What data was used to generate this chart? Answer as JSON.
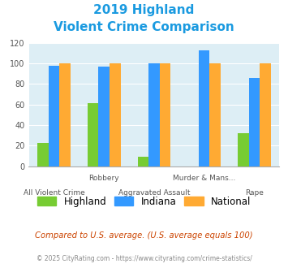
{
  "title_line1": "2019 Highland",
  "title_line2": "Violent Crime Comparison",
  "title_color": "#1a9ae0",
  "groups": [
    {
      "highland": 23,
      "indiana": 98,
      "national": 100
    },
    {
      "highland": 61,
      "indiana": 97,
      "national": 100
    },
    {
      "highland": 9,
      "indiana": 100,
      "national": 100
    },
    {
      "highland": 0,
      "indiana": 113,
      "national": 100
    },
    {
      "highland": 32,
      "indiana": 86,
      "national": 100
    }
  ],
  "top_labels": [
    "",
    "Robbery",
    "",
    "Murder & Mans...",
    ""
  ],
  "bottom_labels": [
    "All Violent Crime",
    "",
    "Aggravated Assault",
    "",
    "Rape"
  ],
  "highland_color": "#77cc33",
  "indiana_color": "#3399ff",
  "national_color": "#ffaa33",
  "bg_color": "#ddeef5",
  "ylim": [
    0,
    120
  ],
  "yticks": [
    0,
    20,
    40,
    60,
    80,
    100,
    120
  ],
  "legend_labels": [
    "Highland",
    "Indiana",
    "National"
  ],
  "footnote1": "Compared to U.S. average. (U.S. average equals 100)",
  "footnote2": "© 2025 CityRating.com - https://www.cityrating.com/crime-statistics/",
  "footnote1_color": "#cc4400",
  "footnote2_color": "#888888"
}
